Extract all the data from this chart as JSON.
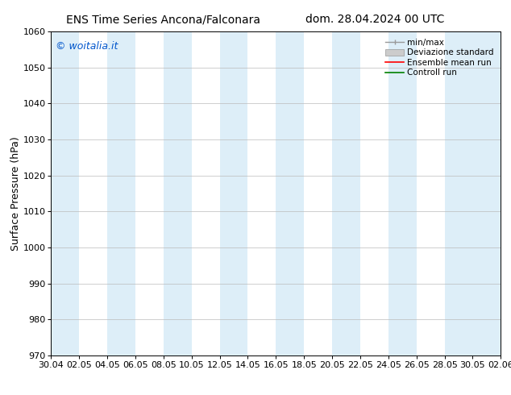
{
  "title_left": "ENS Time Series Ancona/Falconara",
  "title_right": "dom. 28.04.2024 00 UTC",
  "ylabel": "Surface Pressure (hPa)",
  "watermark": "© woitalia.it",
  "watermark_color": "#0055cc",
  "ylim": [
    970,
    1060
  ],
  "yticks": [
    970,
    980,
    990,
    1000,
    1010,
    1020,
    1030,
    1040,
    1050,
    1060
  ],
  "x_tick_labels": [
    "30.04",
    "02.05",
    "04.05",
    "06.05",
    "08.05",
    "10.05",
    "12.05",
    "14.05",
    "16.05",
    "18.05",
    "20.05",
    "22.05",
    "24.05",
    "26.05",
    "28.05",
    "30.05",
    "02.06"
  ],
  "shade_color": "#ddeef8",
  "background_color": "#ffffff",
  "plot_bg_color": "#ffffff",
  "grid_color": "#bbbbbb",
  "legend_labels": [
    "min/max",
    "Deviazione standard",
    "Ensemble mean run",
    "Controll run"
  ],
  "legend_colors_line": [
    "#999999",
    "#cccccc",
    "#ff0000",
    "#008000"
  ],
  "title_fontsize": 10,
  "tick_fontsize": 8,
  "ylabel_fontsize": 9,
  "watermark_fontsize": 9
}
